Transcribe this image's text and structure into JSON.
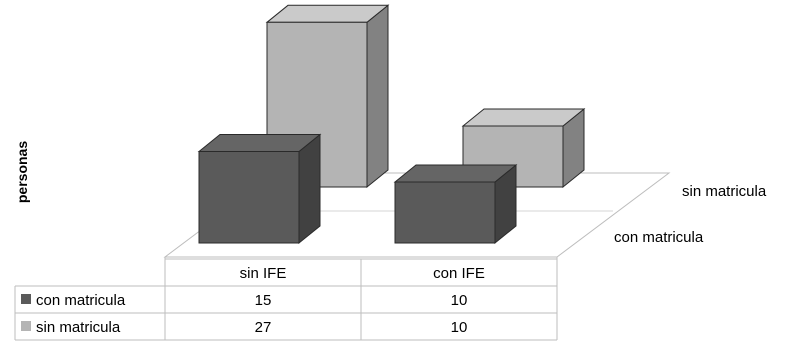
{
  "chart_data": {
    "type": "bar",
    "style": "3d-column",
    "ylabel": "personas",
    "categories": [
      "sin IFE",
      "con IFE"
    ],
    "series": [
      {
        "name": "con matricula",
        "values": [
          15,
          10
        ],
        "color": "#5a5a5a"
      },
      {
        "name": "sin matricula",
        "values": [
          27,
          10
        ],
        "color": "#b4b4b4"
      }
    ],
    "depth_labels": [
      "sin matricula",
      "con matricula"
    ],
    "grid": false,
    "legend": "data-table"
  }
}
